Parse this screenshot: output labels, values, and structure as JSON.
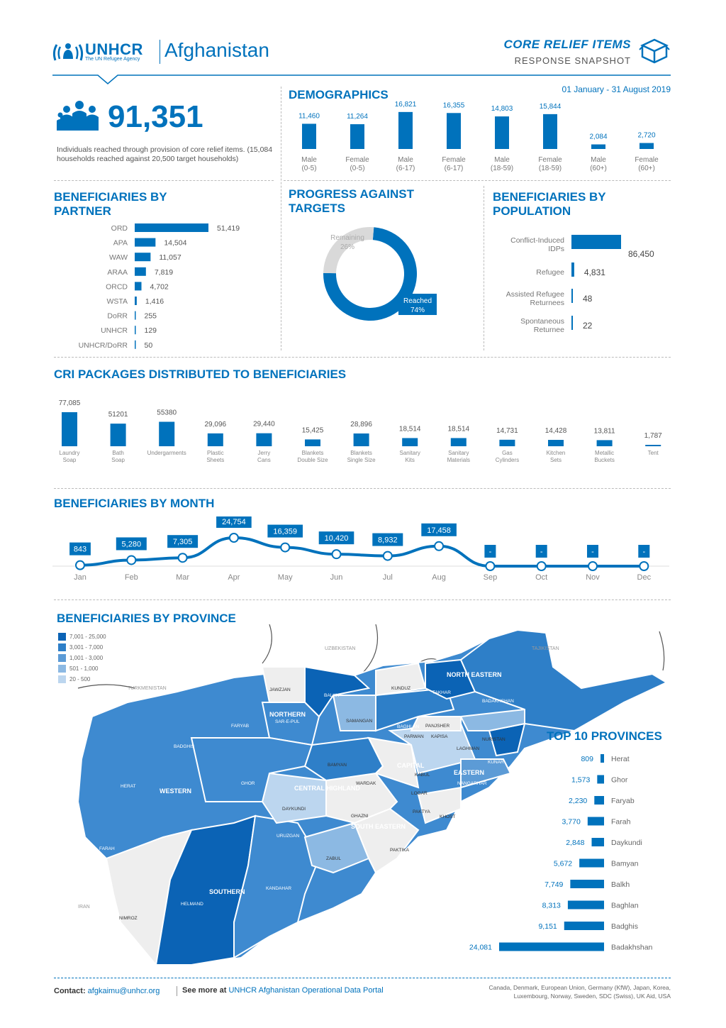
{
  "header": {
    "org": "UNHCR",
    "org_tagline": "The UN Refugee Agency",
    "country": "Afghanistan",
    "banner_title": "CORE RELIEF ITEMS",
    "banner_subtitle": "RESPONSE SNAPSHOT",
    "date_range": "01 January - 31 August 2019"
  },
  "headline": {
    "total": "91,351",
    "desc": "Individuals reached through provision of core relief items. (15,084 households reached against 20,500 target households)"
  },
  "demographics": {
    "title": "DEMOGRAPHICS",
    "chart_data": {
      "type": "bar",
      "categories": [
        "Male (0-5)",
        "Female (0-5)",
        "Male (6-17)",
        "Female (6-17)",
        "Male (18-59)",
        "Female (18-59)",
        "Male (60+)",
        "Female (60+)"
      ],
      "cat_lines": [
        [
          "Male",
          "(0-5)"
        ],
        [
          "Female",
          "(0-5)"
        ],
        [
          "Male",
          "(6-17)"
        ],
        [
          "Female",
          "(6-17)"
        ],
        [
          "Male",
          "(18-59)"
        ],
        [
          "Female",
          "(18-59)"
        ],
        [
          "Male",
          "(60+)"
        ],
        [
          "Female",
          "(60+)"
        ]
      ],
      "values": [
        11460,
        11264,
        16821,
        16355,
        14803,
        15844,
        2084,
        2720
      ],
      "labels": [
        "11,460",
        "11,264",
        "16,821",
        "16,355",
        "14,803",
        "15,844",
        "2,084",
        "2,720"
      ]
    }
  },
  "partners": {
    "title": "BENEFICIARIES BY PARTNER",
    "chart_data": {
      "type": "bar",
      "categories": [
        "ORD",
        "APA",
        "WAW",
        "ARAA",
        "ORCD",
        "WSTA",
        "DoRR",
        "UNHCR",
        "UNHCR/DoRR"
      ],
      "values": [
        51419,
        14504,
        11057,
        7819,
        4702,
        1416,
        255,
        129,
        50
      ],
      "labels": [
        "51,419",
        "14,504",
        "11,057",
        "7,819",
        "4,702",
        "1,416",
        "255",
        "129",
        "50"
      ]
    }
  },
  "progress": {
    "title": "PROGRESS AGAINST TARGETS",
    "chart_data": {
      "type": "pie",
      "categories": [
        "Reached",
        "Remaining"
      ],
      "values": [
        74,
        26
      ],
      "labels": [
        "74%",
        "26%"
      ]
    }
  },
  "population": {
    "title": "BENEFICIARIES BY POPULATION",
    "chart_data": {
      "type": "bar",
      "categories": [
        "Conflict-Induced IDPs",
        "Refugee",
        "Assisted Refugee Returnees",
        "Spontaneous Returnee"
      ],
      "cat_lines": [
        [
          "Conflict-Induced",
          "IDPs"
        ],
        [
          "Refugee"
        ],
        [
          "Assisted Refugee",
          "Returnees"
        ],
        [
          "Spontaneous",
          "Returnee"
        ]
      ],
      "values": [
        86450,
        4831,
        48,
        22
      ],
      "labels": [
        "86,450",
        "4,831",
        "48",
        "22"
      ]
    }
  },
  "packages": {
    "title": "CRI PACKAGES DISTRIBUTED TO BENEFICIARIES",
    "chart_data": {
      "type": "bar",
      "categories": [
        "Laundry Soap",
        "Bath Soap",
        "Undergarments",
        "Plastic Sheets",
        "Jerry Cans",
        "Blankets Double Size",
        "Blankets Single Size",
        "Sanitary Kits",
        "Sanitary Materials",
        "Gas Cylinders",
        "Kitchen Sets",
        "Metallic Buckets",
        "Tent"
      ],
      "cat_lines": [
        [
          "Laundry",
          "Soap"
        ],
        [
          "Bath",
          "Soap"
        ],
        [
          "Undergarments"
        ],
        [
          "Plastic",
          "Sheets"
        ],
        [
          "Jerry",
          "Cans"
        ],
        [
          "Blankets",
          "Double Size"
        ],
        [
          "Blankets",
          "Single Size"
        ],
        [
          "Sanitary",
          "Kits"
        ],
        [
          "Sanitary",
          "Materials"
        ],
        [
          "Gas",
          "Cylinders"
        ],
        [
          "Kitchen",
          "Sets"
        ],
        [
          "Metallic",
          "Buckets"
        ],
        [
          "Tent"
        ]
      ],
      "values": [
        77085,
        51201,
        55380,
        29096,
        29440,
        15425,
        28896,
        18514,
        18514,
        14731,
        14428,
        13811,
        1787
      ],
      "labels": [
        "77,085",
        "51201",
        "55380",
        "29,096",
        "29,440",
        "15,425",
        "28,896",
        "18,514",
        "18,514",
        "14,731",
        "14,428",
        "13,811",
        "1,787"
      ]
    }
  },
  "months": {
    "title": "BENEFICIARIES BY MONTH",
    "chart_data": {
      "type": "line",
      "categories": [
        "Jan",
        "Feb",
        "Mar",
        "Apr",
        "May",
        "Jun",
        "Jul",
        "Aug",
        "Sep",
        "Oct",
        "Nov",
        "Dec"
      ],
      "values": [
        843,
        5280,
        7305,
        24754,
        16359,
        10420,
        8932,
        17458,
        0,
        0,
        0,
        0
      ],
      "labels": [
        "843",
        "5,280",
        "7,305",
        "24,754",
        "16,359",
        "10,420",
        "8,932",
        "17,458",
        "-",
        "-",
        "-",
        "-"
      ]
    }
  },
  "province": {
    "title": "BENEFICIARIES BY PROVINCE",
    "legend": [
      {
        "label": "7,001 - 25,000",
        "color": "#0b63b5"
      },
      {
        "label": "3,001 - 7,000",
        "color": "#2e7fc8"
      },
      {
        "label": "1,001 - 3,000",
        "color": "#5c9bd6"
      },
      {
        "label": "501 - 1,000",
        "color": "#8cb9e3"
      },
      {
        "label": "20 - 500",
        "color": "#bcd6ef"
      }
    ],
    "countries": [
      "UZBEKISTAN",
      "TAJIKISTAN",
      "TURKMENISTAN",
      "IRAN"
    ],
    "regions": [
      "NORTH EASTERN",
      "NORTHERN",
      "WESTERN",
      "CENTRAL HIGHLAND",
      "CAPITAL",
      "EASTERN",
      "SOUTH EASTERN",
      "SOUTHERN"
    ],
    "map_labels": [
      "JAWZJAN",
      "BALKH",
      "KUNDUZ",
      "TAKHAR",
      "BADAKHSHAN",
      "SAMANGAN",
      "BAGHLAN",
      "FARYAB",
      "SAR-E-PUL",
      "BADGHIS",
      "HERAT",
      "GHOR",
      "BAMYAN",
      "PANJSHER",
      "NURISTAN",
      "KUNAR",
      "PARWAN",
      "KAPISA",
      "KABUL",
      "LAGHMAN",
      "NANGARHAR",
      "WARDAK",
      "LOGAR",
      "DAYKUNDI",
      "GHAZNI",
      "PAKTYA",
      "KHOST",
      "URUZGAN",
      "ZABUL",
      "PAKTIKA",
      "FARAH",
      "NIMROZ",
      "HELMAND",
      "KANDAHAR"
    ]
  },
  "top10": {
    "title": "TOP 10 PROVINCES",
    "chart_data": {
      "type": "bar",
      "categories": [
        "Herat",
        "Ghor",
        "Faryab",
        "Farah",
        "Daykundi",
        "Bamyan",
        "Balkh",
        "Baghlan",
        "Badghis",
        "Badakhshan"
      ],
      "values": [
        809,
        1573,
        2230,
        3770,
        2848,
        5672,
        7749,
        8313,
        9151,
        24081
      ],
      "labels": [
        "809",
        "1,573",
        "2,230",
        "3,770",
        "2,848",
        "5,672",
        "7,749",
        "8,313",
        "9,151",
        "24,081"
      ]
    }
  },
  "footer": {
    "contact_label": "Contact:",
    "contact_email": "afgkaimu@unhcr.org",
    "more_label": "See more at",
    "portal": "UNHCR Afghanistan Operational Data Portal",
    "donors_line1": "Canada, Denmark, European Union, Germany (KfW), Japan, Korea,",
    "donors_line2": "Luxembourg, Norway, Sweden, SDC (Swiss), UK Aid, USA"
  },
  "colors": {
    "accent": "#0072bc",
    "bar": "#0072bc",
    "remaining": "#d9d9d9",
    "map_gray": "#eeeeee"
  }
}
